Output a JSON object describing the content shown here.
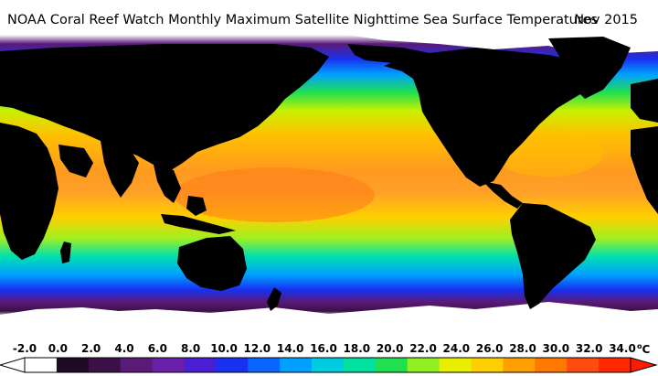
{
  "title": "NOAA Coral Reef Watch Monthly Maximum Satellite Nighttime Sea Surface Temperatures",
  "date": "Nov 2015",
  "scale": {
    "labels": [
      "-2.0",
      "0.0",
      "2.0",
      "4.0",
      "6.0",
      "8.0",
      "10.0",
      "12.0",
      "14.0",
      "16.0",
      "18.0",
      "20.0",
      "22.0",
      "24.0",
      "26.0",
      "28.0",
      "30.0",
      "32.0",
      "34.0"
    ],
    "unit_degree": "o",
    "unit_letter": "C",
    "min": -2.0,
    "max": 34.0
  },
  "colors": {
    "land": "#000000",
    "ice": "#ffffff",
    "scale": [
      "#ffffff",
      "#1e0a24",
      "#3a1046",
      "#5a1a78",
      "#6a1fa8",
      "#4a1ed2",
      "#1830f0",
      "#0a64ff",
      "#00a0ff",
      "#00cce0",
      "#00e0a0",
      "#20e050",
      "#90f020",
      "#e8f000",
      "#ffd000",
      "#ffa000",
      "#ff7800",
      "#ff4a10",
      "#ff2800"
    ]
  }
}
